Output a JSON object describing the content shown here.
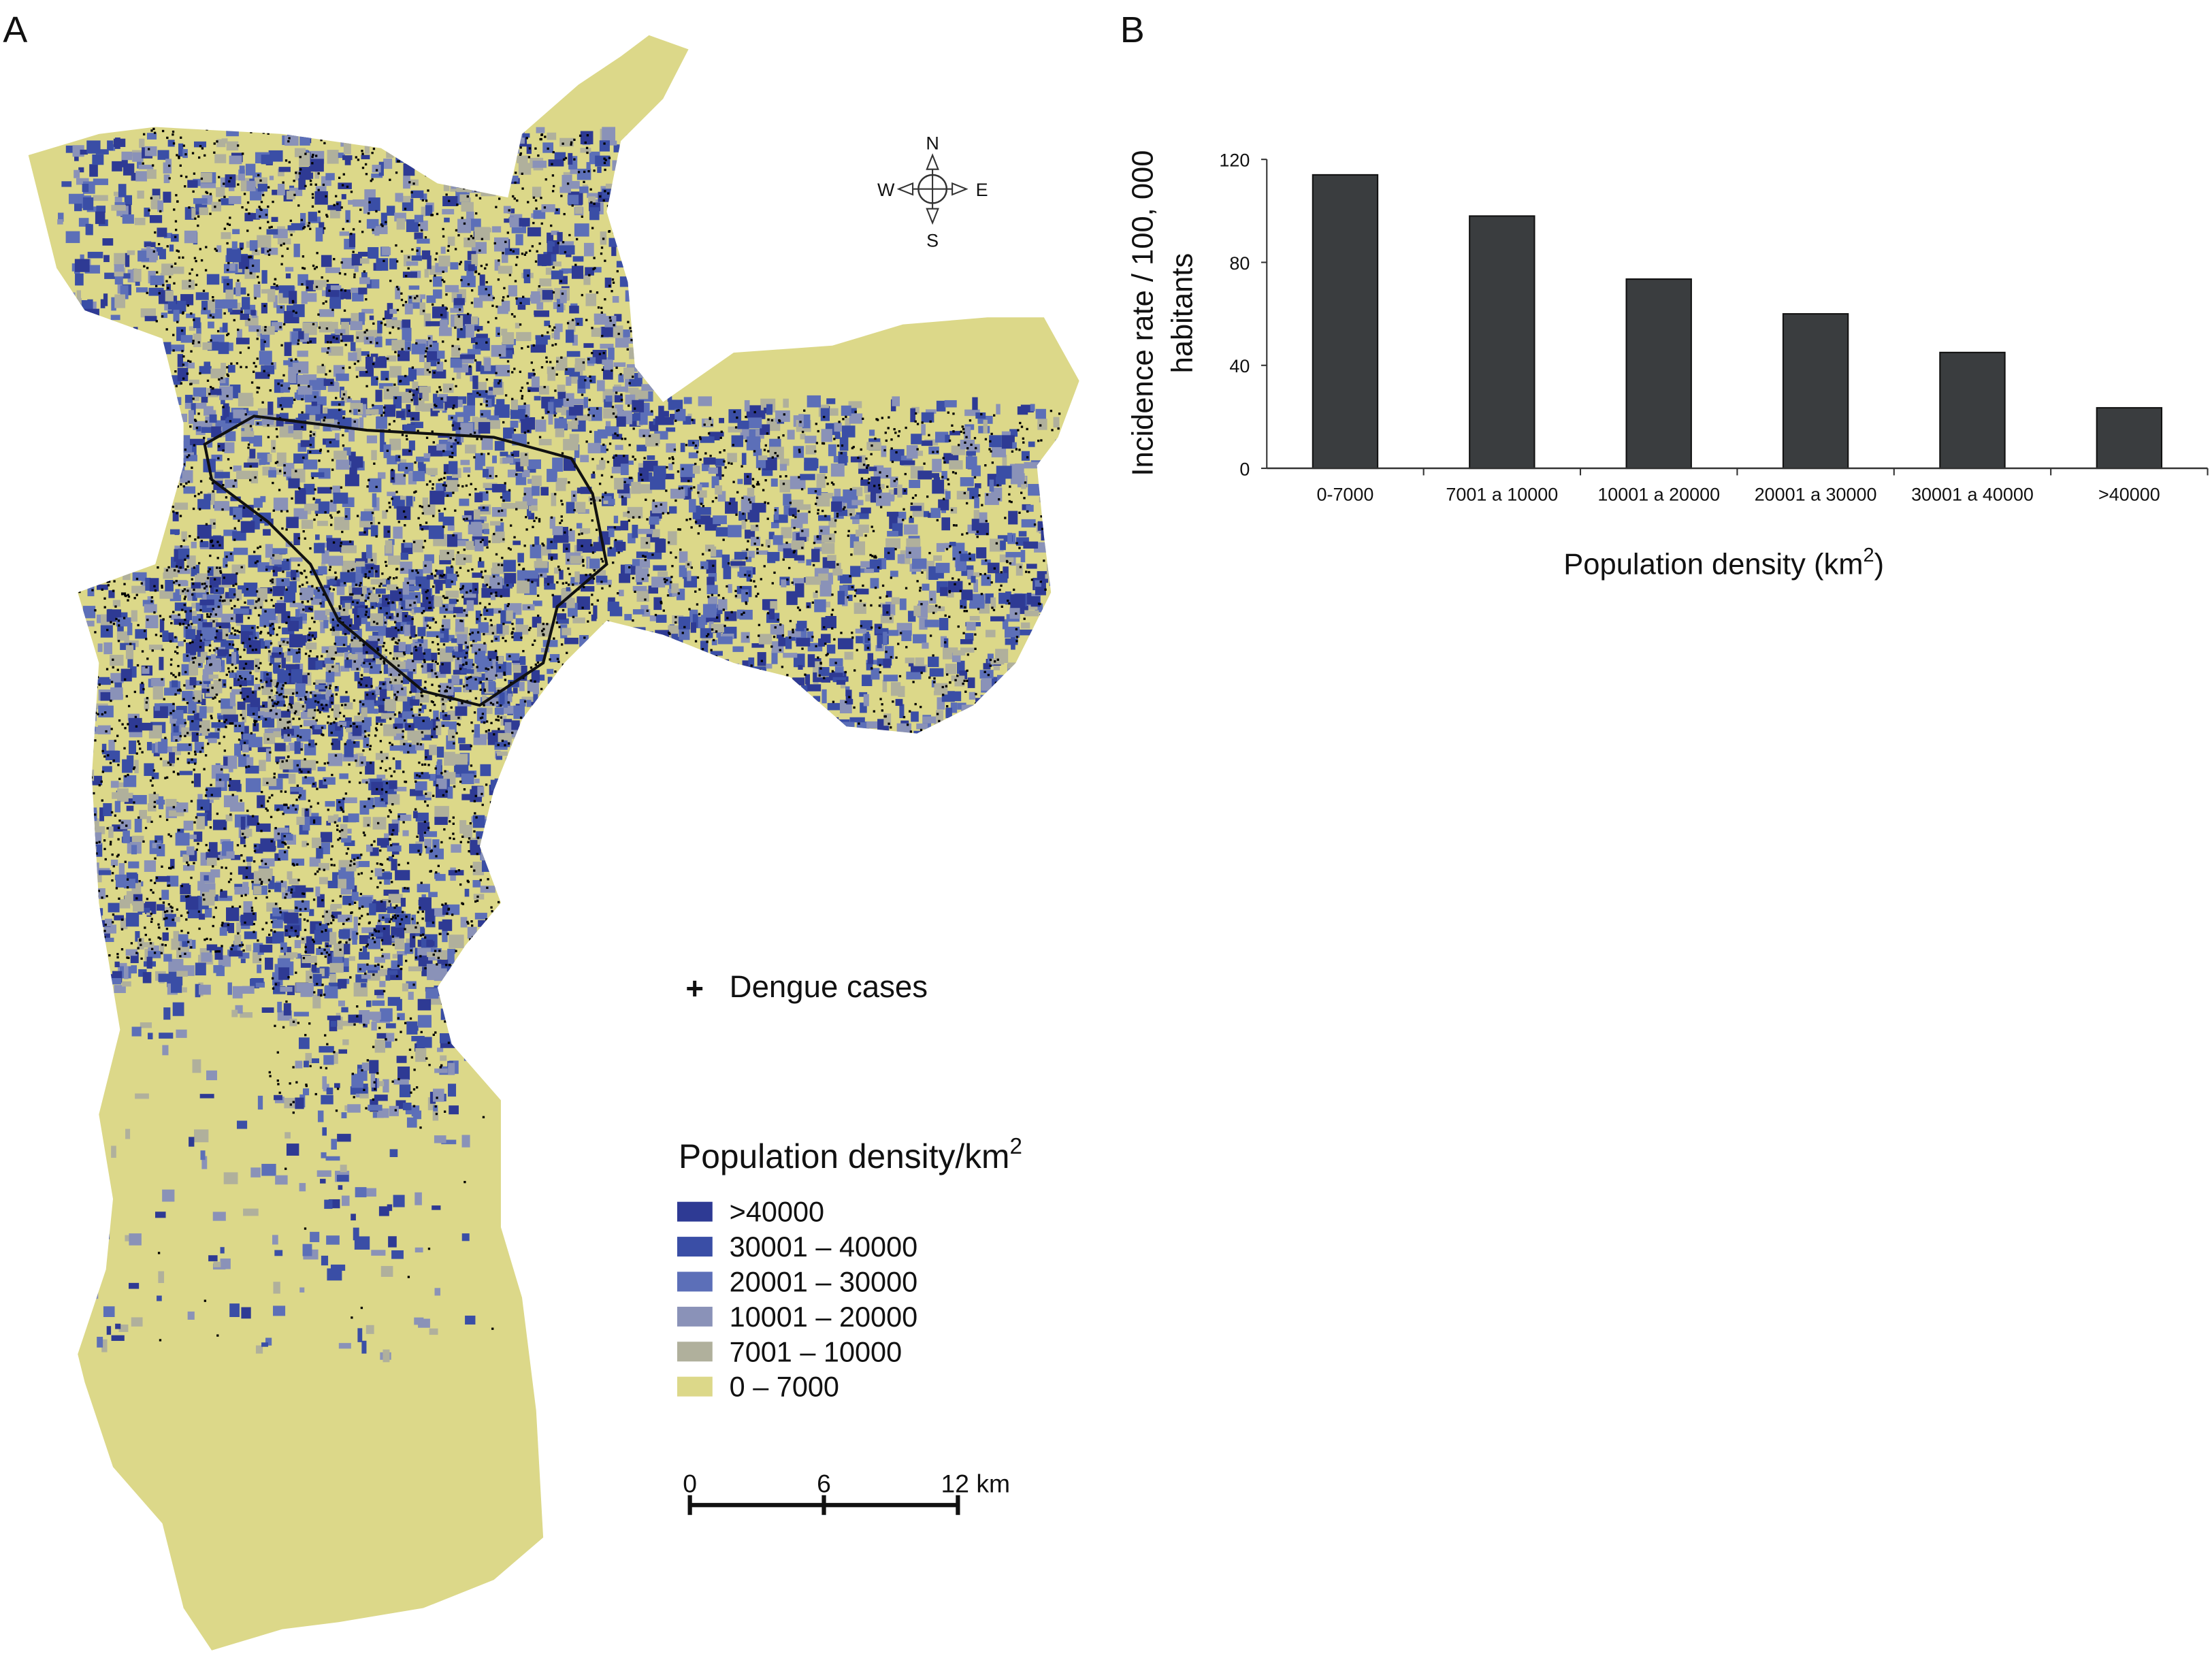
{
  "panel_a": {
    "label": "A",
    "compass": {
      "n": "N",
      "s": "S",
      "e": "E",
      "w": "W"
    },
    "cases_legend": {
      "symbol": "+",
      "label": "Dengue cases"
    },
    "density_legend": {
      "title": "Population density/km",
      "title_sup": "2",
      "items": [
        {
          "label": ">40000",
          "color": "#2e3a94"
        },
        {
          "label": "30001 – 40000",
          "color": "#3a4ea6"
        },
        {
          "label": "20001 – 30000",
          "color": "#5c6fb8"
        },
        {
          "label": "10001 – 20000",
          "color": "#8a92b8"
        },
        {
          "label": "7001 – 10000",
          "color": "#b0b09c"
        },
        {
          "label": "0 – 7000",
          "color": "#dcd889"
        }
      ]
    },
    "scale_bar": {
      "ticks": [
        "0",
        "6",
        "12 km"
      ]
    }
  },
  "panel_b": {
    "label": "B"
  },
  "chart_data": {
    "type": "bar",
    "title": "",
    "xlabel": "Population density (km",
    "xlabel_sup": "2",
    "xlabel_close": ")",
    "ylabel_line1": "Incidence rate / 100, 000",
    "ylabel_line2": "habitants",
    "ylim": [
      0,
      120
    ],
    "yticks": [
      "0",
      "40",
      "80",
      "120"
    ],
    "categories": [
      "0-7000",
      "7001 a 10000",
      "10001 a 20000",
      "20001 a 30000",
      "30001 a 40000",
      ">40000"
    ],
    "values": [
      114,
      98,
      73.5,
      60,
      45,
      23.5
    ],
    "bar_color": "#3a3d3f",
    "grid": false
  }
}
